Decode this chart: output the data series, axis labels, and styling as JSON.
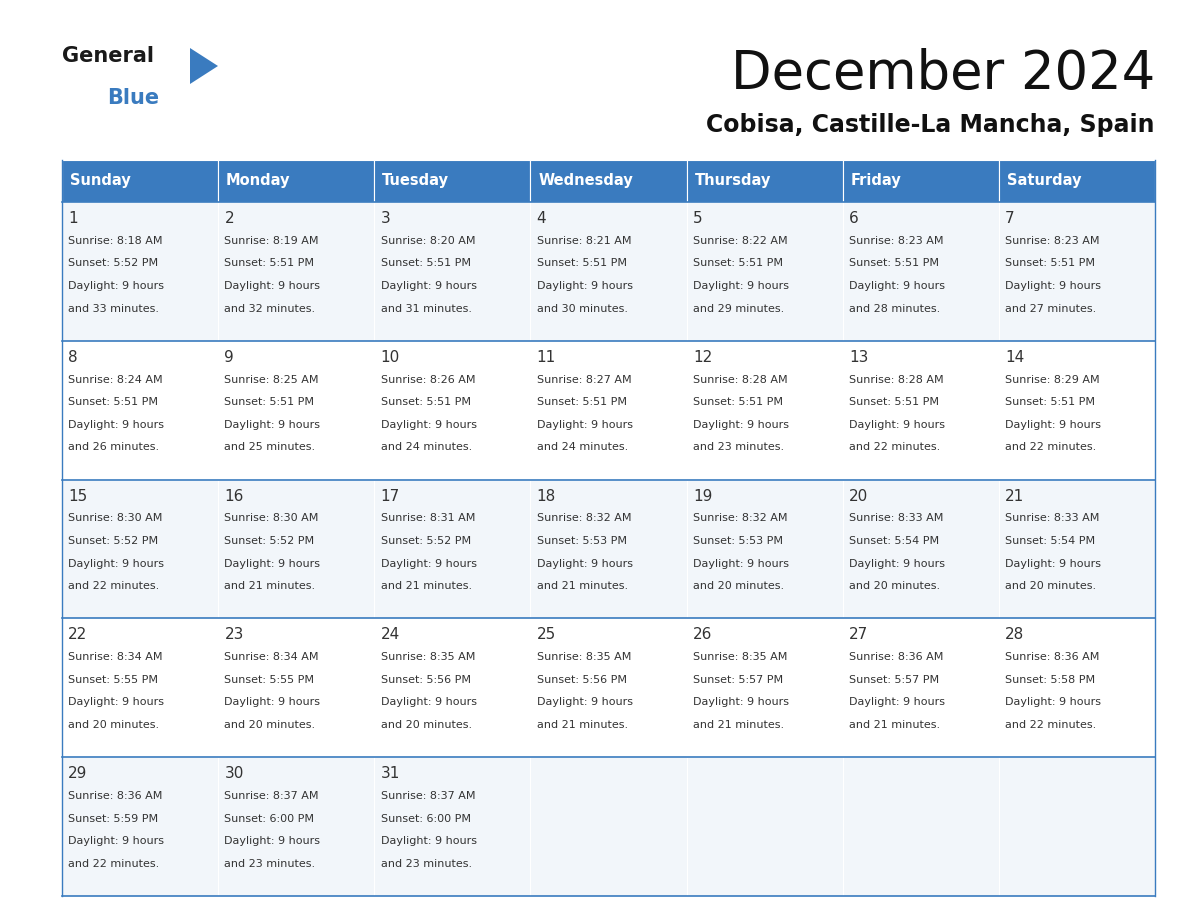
{
  "title": "December 2024",
  "subtitle": "Cobisa, Castille-La Mancha, Spain",
  "header_color": "#3a7bbf",
  "header_text_color": "#ffffff",
  "bg_color": "#ffffff",
  "cell_bg_even": "#f2f6fa",
  "cell_bg_odd": "#ffffff",
  "text_color": "#333333",
  "days_of_week": [
    "Sunday",
    "Monday",
    "Tuesday",
    "Wednesday",
    "Thursday",
    "Friday",
    "Saturday"
  ],
  "weeks": [
    [
      {
        "day": 1,
        "sunrise": "8:18 AM",
        "sunset": "5:52 PM",
        "daylight": "9 hours\nand 33 minutes."
      },
      {
        "day": 2,
        "sunrise": "8:19 AM",
        "sunset": "5:51 PM",
        "daylight": "9 hours\nand 32 minutes."
      },
      {
        "day": 3,
        "sunrise": "8:20 AM",
        "sunset": "5:51 PM",
        "daylight": "9 hours\nand 31 minutes."
      },
      {
        "day": 4,
        "sunrise": "8:21 AM",
        "sunset": "5:51 PM",
        "daylight": "9 hours\nand 30 minutes."
      },
      {
        "day": 5,
        "sunrise": "8:22 AM",
        "sunset": "5:51 PM",
        "daylight": "9 hours\nand 29 minutes."
      },
      {
        "day": 6,
        "sunrise": "8:23 AM",
        "sunset": "5:51 PM",
        "daylight": "9 hours\nand 28 minutes."
      },
      {
        "day": 7,
        "sunrise": "8:23 AM",
        "sunset": "5:51 PM",
        "daylight": "9 hours\nand 27 minutes."
      }
    ],
    [
      {
        "day": 8,
        "sunrise": "8:24 AM",
        "sunset": "5:51 PM",
        "daylight": "9 hours\nand 26 minutes."
      },
      {
        "day": 9,
        "sunrise": "8:25 AM",
        "sunset": "5:51 PM",
        "daylight": "9 hours\nand 25 minutes."
      },
      {
        "day": 10,
        "sunrise": "8:26 AM",
        "sunset": "5:51 PM",
        "daylight": "9 hours\nand 24 minutes."
      },
      {
        "day": 11,
        "sunrise": "8:27 AM",
        "sunset": "5:51 PM",
        "daylight": "9 hours\nand 24 minutes."
      },
      {
        "day": 12,
        "sunrise": "8:28 AM",
        "sunset": "5:51 PM",
        "daylight": "9 hours\nand 23 minutes."
      },
      {
        "day": 13,
        "sunrise": "8:28 AM",
        "sunset": "5:51 PM",
        "daylight": "9 hours\nand 22 minutes."
      },
      {
        "day": 14,
        "sunrise": "8:29 AM",
        "sunset": "5:51 PM",
        "daylight": "9 hours\nand 22 minutes."
      }
    ],
    [
      {
        "day": 15,
        "sunrise": "8:30 AM",
        "sunset": "5:52 PM",
        "daylight": "9 hours\nand 22 minutes."
      },
      {
        "day": 16,
        "sunrise": "8:30 AM",
        "sunset": "5:52 PM",
        "daylight": "9 hours\nand 21 minutes."
      },
      {
        "day": 17,
        "sunrise": "8:31 AM",
        "sunset": "5:52 PM",
        "daylight": "9 hours\nand 21 minutes."
      },
      {
        "day": 18,
        "sunrise": "8:32 AM",
        "sunset": "5:53 PM",
        "daylight": "9 hours\nand 21 minutes."
      },
      {
        "day": 19,
        "sunrise": "8:32 AM",
        "sunset": "5:53 PM",
        "daylight": "9 hours\nand 20 minutes."
      },
      {
        "day": 20,
        "sunrise": "8:33 AM",
        "sunset": "5:54 PM",
        "daylight": "9 hours\nand 20 minutes."
      },
      {
        "day": 21,
        "sunrise": "8:33 AM",
        "sunset": "5:54 PM",
        "daylight": "9 hours\nand 20 minutes."
      }
    ],
    [
      {
        "day": 22,
        "sunrise": "8:34 AM",
        "sunset": "5:55 PM",
        "daylight": "9 hours\nand 20 minutes."
      },
      {
        "day": 23,
        "sunrise": "8:34 AM",
        "sunset": "5:55 PM",
        "daylight": "9 hours\nand 20 minutes."
      },
      {
        "day": 24,
        "sunrise": "8:35 AM",
        "sunset": "5:56 PM",
        "daylight": "9 hours\nand 20 minutes."
      },
      {
        "day": 25,
        "sunrise": "8:35 AM",
        "sunset": "5:56 PM",
        "daylight": "9 hours\nand 21 minutes."
      },
      {
        "day": 26,
        "sunrise": "8:35 AM",
        "sunset": "5:57 PM",
        "daylight": "9 hours\nand 21 minutes."
      },
      {
        "day": 27,
        "sunrise": "8:36 AM",
        "sunset": "5:57 PM",
        "daylight": "9 hours\nand 21 minutes."
      },
      {
        "day": 28,
        "sunrise": "8:36 AM",
        "sunset": "5:58 PM",
        "daylight": "9 hours\nand 22 minutes."
      }
    ],
    [
      {
        "day": 29,
        "sunrise": "8:36 AM",
        "sunset": "5:59 PM",
        "daylight": "9 hours\nand 22 minutes."
      },
      {
        "day": 30,
        "sunrise": "8:37 AM",
        "sunset": "6:00 PM",
        "daylight": "9 hours\nand 23 minutes."
      },
      {
        "day": 31,
        "sunrise": "8:37 AM",
        "sunset": "6:00 PM",
        "daylight": "9 hours\nand 23 minutes."
      },
      null,
      null,
      null,
      null
    ]
  ],
  "logo_general_color": "#1a1a1a",
  "logo_blue_color": "#3a7bbf",
  "logo_triangle_color": "#3a7bbf"
}
